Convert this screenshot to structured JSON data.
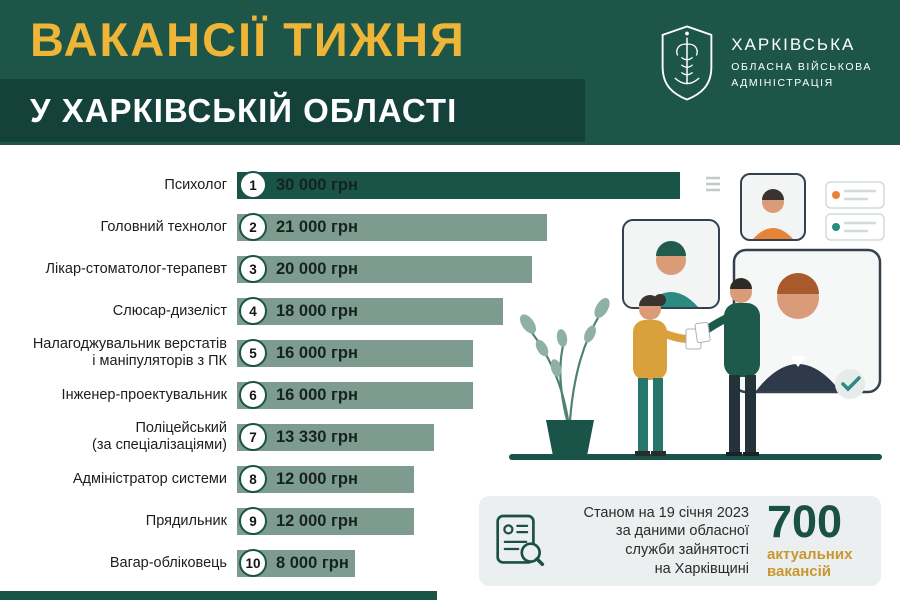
{
  "header": {
    "title_line1": "ВАКАНСІЇ ТИЖНЯ",
    "title_line2": "У ХАРКІВСЬКІЙ ОБЛАСТІ",
    "org_name": {
      "line1": "ХАРКІВСЬКА",
      "line2": "ОБЛАСНА ВІЙСЬКОВА",
      "line3": "АДМІНІСТРАЦІЯ"
    }
  },
  "chart_data": {
    "type": "bar",
    "orientation": "horizontal",
    "title": "Вакансії тижня у Харківській області",
    "unit": "грн",
    "xlim": [
      0,
      30000
    ],
    "grid": false,
    "legend": "none",
    "categories": [
      "Психолог",
      "Головний технолог",
      "Лікар-стоматолог-терапевт",
      "Слюсар-дизеліст",
      "Налагоджувальник верстатів\nі маніпуляторів з ПК",
      "Інженер-проектувальник",
      "Поліцейський\n(за спеціалізаціями)",
      "Адміністратор системи",
      "Прядильник",
      "Вагар-обліковець"
    ],
    "values": [
      30000,
      21000,
      20000,
      18000,
      16000,
      16000,
      13330,
      12000,
      12000,
      8000
    ],
    "value_labels": [
      "30 000 грн",
      "21 000 грн",
      "20 000 грн",
      "18 000 грн",
      "16 000 грн",
      "16 000 грн",
      "13 330 грн",
      "12 000 грн",
      "12 000 грн",
      "8 000 грн"
    ],
    "ranks": [
      "1",
      "2",
      "3",
      "4",
      "5",
      "6",
      "7",
      "8",
      "9",
      "10"
    ]
  },
  "summary": {
    "note": "Станом на 19 січня 2023\nза даними обласної\nслужби зайнятості\nна Харківщині",
    "count": "700",
    "count_label": "актуальних\nвакансій"
  },
  "icons": {
    "logo": "kharkiv-oblast-emblem-icon",
    "summary": "document-search-icon",
    "illustration": "recruitment-people-illustration"
  },
  "colors": {
    "header_green": "#1D5649",
    "header_band": "#14423A",
    "gold": "#EFB537",
    "bar_primary": "#1A5348",
    "bar_secondary": "#7E9B90",
    "panel_bg": "#ECEFEF",
    "count_green": "#1B5044",
    "count_label_gold": "#C8972E"
  }
}
